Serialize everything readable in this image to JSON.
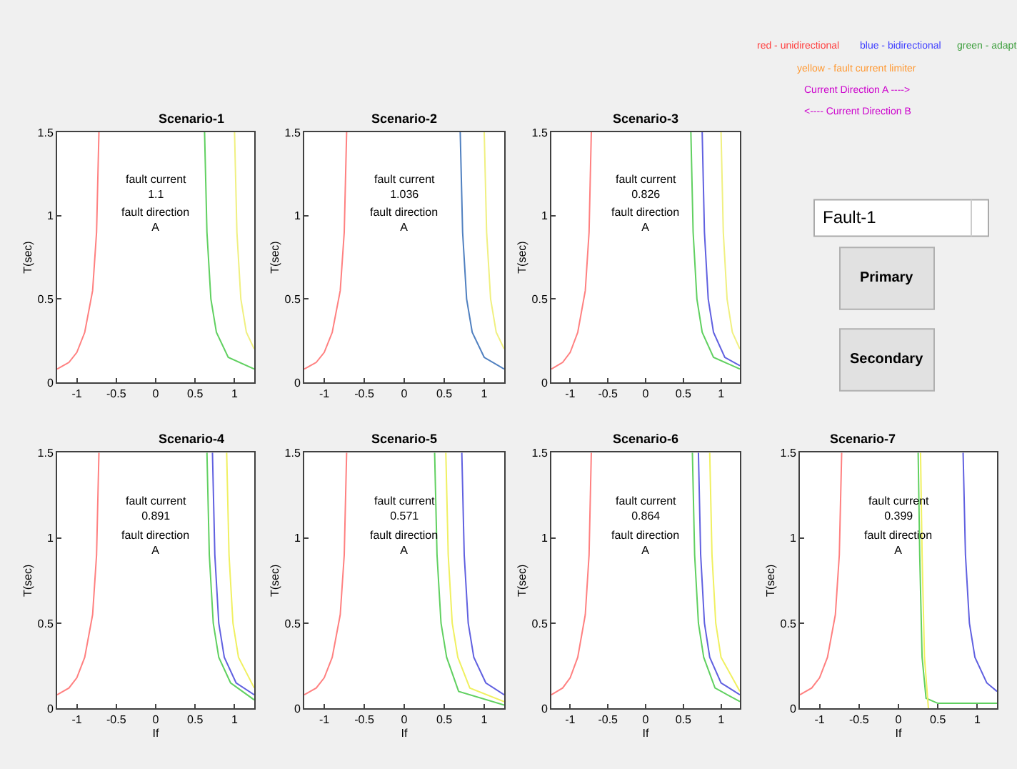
{
  "chart_data": [
    {
      "type": "line",
      "title": "Scenario-1",
      "ylabel": "T(sec)",
      "xlim": [
        -1.25,
        1.25
      ],
      "ylim": [
        0,
        1.5
      ],
      "xticks": [
        -1,
        -0.5,
        0,
        0.5,
        1
      ],
      "yticks": [
        0,
        0.5,
        1,
        1.5
      ],
      "annotations": [
        "fault current\n1.1",
        "fault direction\nA"
      ],
      "series": [
        {
          "color": "#ff8080",
          "x": [
            -1.25,
            -1.1,
            -1.0,
            -0.9,
            -0.8,
            -0.75,
            -0.72
          ],
          "values": [
            0.08,
            0.12,
            0.18,
            0.3,
            0.55,
            0.9,
            1.5
          ]
        },
        {
          "color": "#60d060",
          "x": [
            0.62,
            0.65,
            0.7,
            0.77,
            0.92,
            1.25
          ],
          "values": [
            1.5,
            0.9,
            0.5,
            0.3,
            0.15,
            0.08
          ]
        },
        {
          "color": "#f0f080",
          "x": [
            1.0,
            1.03,
            1.08,
            1.15,
            1.25
          ],
          "values": [
            1.5,
            0.9,
            0.5,
            0.3,
            0.2
          ]
        }
      ]
    },
    {
      "type": "line",
      "title": "Scenario-2",
      "ylabel": "T(sec)",
      "xlim": [
        -1.25,
        1.25
      ],
      "ylim": [
        0,
        1.5
      ],
      "xticks": [
        -1,
        -0.5,
        0,
        0.5,
        1
      ],
      "yticks": [
        0,
        0.5,
        1,
        1.5
      ],
      "annotations": [
        "fault current\n1.036",
        "fault direction\nA"
      ],
      "series": [
        {
          "color": "#ff8080",
          "x": [
            -1.25,
            -1.1,
            -1.0,
            -0.9,
            -0.8,
            -0.75,
            -0.72
          ],
          "values": [
            0.08,
            0.12,
            0.18,
            0.3,
            0.55,
            0.9,
            1.5
          ]
        },
        {
          "color": "#5080c0",
          "x": [
            0.7,
            0.73,
            0.78,
            0.85,
            1.0,
            1.25
          ],
          "values": [
            1.5,
            0.9,
            0.5,
            0.3,
            0.15,
            0.08
          ]
        },
        {
          "color": "#f0f080",
          "x": [
            1.0,
            1.03,
            1.08,
            1.15,
            1.25
          ],
          "values": [
            1.5,
            0.9,
            0.5,
            0.3,
            0.2
          ]
        }
      ]
    },
    {
      "type": "line",
      "title": "Scenario-3",
      "ylabel": "T(sec)",
      "xlim": [
        -1.25,
        1.25
      ],
      "ylim": [
        0,
        1.5
      ],
      "xticks": [
        -1,
        -0.5,
        0,
        0.5,
        1
      ],
      "yticks": [
        0,
        0.5,
        1,
        1.5
      ],
      "annotations": [
        "fault current\n0.826",
        "fault direction\nA"
      ],
      "series": [
        {
          "color": "#ff8080",
          "x": [
            -1.25,
            -1.1,
            -1.0,
            -0.9,
            -0.8,
            -0.75,
            -0.72
          ],
          "values": [
            0.08,
            0.12,
            0.18,
            0.3,
            0.55,
            0.9,
            1.5
          ]
        },
        {
          "color": "#60d060",
          "x": [
            0.6,
            0.63,
            0.68,
            0.75,
            0.9,
            1.25
          ],
          "values": [
            1.5,
            0.9,
            0.5,
            0.3,
            0.15,
            0.08
          ]
        },
        {
          "color": "#6060e0",
          "x": [
            0.75,
            0.78,
            0.83,
            0.9,
            1.05,
            1.25
          ],
          "values": [
            1.5,
            0.9,
            0.5,
            0.3,
            0.15,
            0.1
          ]
        },
        {
          "color": "#f0f080",
          "x": [
            1.0,
            1.03,
            1.08,
            1.15,
            1.25
          ],
          "values": [
            1.5,
            0.9,
            0.5,
            0.3,
            0.2
          ]
        }
      ]
    },
    {
      "type": "line",
      "title": "Scenario-4",
      "xlabel": "If",
      "ylabel": "T(sec)",
      "xlim": [
        -1.25,
        1.25
      ],
      "ylim": [
        0,
        1.5
      ],
      "xticks": [
        -1,
        -0.5,
        0,
        0.5,
        1
      ],
      "yticks": [
        0,
        0.5,
        1,
        1.5
      ],
      "annotations": [
        "fault current\n0.891",
        "fault direction\nA"
      ],
      "series": [
        {
          "color": "#ff8080",
          "x": [
            -1.25,
            -1.1,
            -1.0,
            -0.9,
            -0.8,
            -0.75,
            -0.72
          ],
          "values": [
            0.08,
            0.12,
            0.18,
            0.3,
            0.55,
            0.9,
            1.5
          ]
        },
        {
          "color": "#60d060",
          "x": [
            0.65,
            0.68,
            0.73,
            0.8,
            0.95,
            1.25
          ],
          "values": [
            1.5,
            0.9,
            0.5,
            0.3,
            0.15,
            0.05
          ]
        },
        {
          "color": "#6060e0",
          "x": [
            0.72,
            0.75,
            0.8,
            0.87,
            1.02,
            1.25
          ],
          "values": [
            1.5,
            0.9,
            0.5,
            0.3,
            0.15,
            0.08
          ]
        },
        {
          "color": "#f0f060",
          "x": [
            0.9,
            0.93,
            0.98,
            1.05,
            1.25
          ],
          "values": [
            1.5,
            0.9,
            0.5,
            0.3,
            0.12
          ]
        }
      ]
    },
    {
      "type": "line",
      "title": "Scenario-5",
      "xlabel": "If",
      "ylabel": "T(sec)",
      "xlim": [
        -1.25,
        1.25
      ],
      "ylim": [
        0,
        1.5
      ],
      "xticks": [
        -1,
        -0.5,
        0,
        0.5,
        1
      ],
      "yticks": [
        0,
        0.5,
        1,
        1.5
      ],
      "annotations": [
        "fault current\n0.571",
        "fault direction\nA"
      ],
      "series": [
        {
          "color": "#ff8080",
          "x": [
            -1.25,
            -1.1,
            -1.0,
            -0.9,
            -0.8,
            -0.75,
            -0.72
          ],
          "values": [
            0.08,
            0.12,
            0.18,
            0.3,
            0.55,
            0.9,
            1.5
          ]
        },
        {
          "color": "#60d060",
          "x": [
            0.38,
            0.41,
            0.46,
            0.53,
            0.68,
            1.25
          ],
          "values": [
            1.5,
            0.9,
            0.5,
            0.3,
            0.1,
            0.02
          ]
        },
        {
          "color": "#f0f060",
          "x": [
            0.52,
            0.55,
            0.6,
            0.67,
            0.82,
            1.25
          ],
          "values": [
            1.5,
            0.9,
            0.5,
            0.3,
            0.12,
            0.04
          ]
        },
        {
          "color": "#6060e0",
          "x": [
            0.72,
            0.75,
            0.8,
            0.87,
            1.02,
            1.25
          ],
          "values": [
            1.5,
            0.9,
            0.5,
            0.3,
            0.15,
            0.08
          ]
        }
      ]
    },
    {
      "type": "line",
      "title": "Scenario-6",
      "xlabel": "If",
      "ylabel": "T(sec)",
      "xlim": [
        -1.25,
        1.25
      ],
      "ylim": [
        0,
        1.5
      ],
      "xticks": [
        -1,
        -0.5,
        0,
        0.5,
        1
      ],
      "yticks": [
        0,
        0.5,
        1,
        1.5
      ],
      "annotations": [
        "fault current\n0.864",
        "fault direction\nA"
      ],
      "series": [
        {
          "color": "#ff8080",
          "x": [
            -1.25,
            -1.1,
            -1.0,
            -0.9,
            -0.8,
            -0.75,
            -0.72
          ],
          "values": [
            0.08,
            0.12,
            0.18,
            0.3,
            0.55,
            0.9,
            1.5
          ]
        },
        {
          "color": "#60d060",
          "x": [
            0.62,
            0.65,
            0.7,
            0.77,
            0.92,
            1.25
          ],
          "values": [
            1.5,
            0.9,
            0.5,
            0.3,
            0.12,
            0.04
          ]
        },
        {
          "color": "#6060e0",
          "x": [
            0.7,
            0.73,
            0.78,
            0.85,
            1.0,
            1.25
          ],
          "values": [
            1.5,
            0.9,
            0.5,
            0.3,
            0.15,
            0.08
          ]
        },
        {
          "color": "#f0f060",
          "x": [
            0.85,
            0.88,
            0.93,
            1.0,
            1.25
          ],
          "values": [
            1.5,
            0.9,
            0.5,
            0.3,
            0.1
          ]
        }
      ]
    },
    {
      "type": "line",
      "title": "Scenario-7",
      "xlabel": "If",
      "ylabel": "T(sec)",
      "xlim": [
        -1.25,
        1.25
      ],
      "ylim": [
        0,
        1.5
      ],
      "xticks": [
        -1,
        -0.5,
        0,
        0.5,
        1
      ],
      "yticks": [
        0,
        0.5,
        1,
        1.5
      ],
      "annotations": [
        "fault current\n0.399",
        "fault direction\nA"
      ],
      "series": [
        {
          "color": "#ff8080",
          "x": [
            -1.25,
            -1.1,
            -1.0,
            -0.9,
            -0.8,
            -0.75,
            -0.72
          ],
          "values": [
            0.08,
            0.12,
            0.18,
            0.3,
            0.55,
            0.9,
            1.5
          ]
        },
        {
          "color": "#60d060",
          "x": [
            0.25,
            0.27,
            0.3,
            0.35,
            0.5,
            1.25
          ],
          "values": [
            1.5,
            0.9,
            0.3,
            0.06,
            0.03,
            0.03
          ]
        },
        {
          "color": "#f0f060",
          "x": [
            0.28,
            0.3,
            0.33,
            0.38
          ],
          "values": [
            1.5,
            0.9,
            0.3,
            0.0
          ]
        },
        {
          "color": "#6060e0",
          "x": [
            0.82,
            0.85,
            0.9,
            0.97,
            1.12,
            1.25
          ],
          "values": [
            1.5,
            0.9,
            0.5,
            0.3,
            0.15,
            0.1
          ]
        }
      ]
    },
    {
      "type": "other",
      "annotations": [
        "red - unidirectional",
        "blue - bidirectional",
        "green - adapt",
        "yellow - fault current limiter",
        "Current Direction A ---->",
        "<---- Current Direction B",
        "Fault-1",
        "Primary",
        "Secondary"
      ],
      "colors": [
        "#ff4040",
        "#4040ff",
        "#40a040",
        "#ff9933",
        "#cc00cc",
        "#cc00cc",
        "#000000",
        "#000000",
        "#000000"
      ]
    }
  ]
}
